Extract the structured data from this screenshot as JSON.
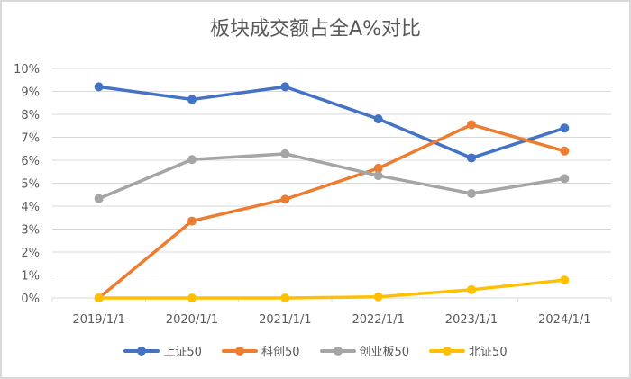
{
  "chart_data": {
    "type": "line",
    "title": "板块成交额占全A%对比",
    "xlabel": "",
    "ylabel": "",
    "categories": [
      "2019/1/1",
      "2020/1/1",
      "2021/1/1",
      "2022/1/1",
      "2023/1/1",
      "2024/1/1"
    ],
    "y_ticks": [
      "0%",
      "1%",
      "2%",
      "3%",
      "4%",
      "5%",
      "6%",
      "7%",
      "8%",
      "9%",
      "10%"
    ],
    "ylim": [
      0,
      10
    ],
    "grid": true,
    "legend_position": "bottom",
    "series": [
      {
        "name": "上证50",
        "color": "#4472c4",
        "values": [
          9.2,
          8.65,
          9.2,
          7.8,
          6.1,
          7.4
        ]
      },
      {
        "name": "科创50",
        "color": "#ed7d31",
        "values": [
          0.0,
          3.35,
          4.3,
          5.65,
          7.55,
          6.4
        ]
      },
      {
        "name": "创业板50",
        "color": "#a5a5a5",
        "values": [
          4.33,
          6.03,
          6.28,
          5.33,
          4.55,
          5.2
        ]
      },
      {
        "name": "北证50",
        "color": "#ffc000",
        "values": [
          0.0,
          0.0,
          0.0,
          0.05,
          0.36,
          0.78
        ]
      }
    ]
  }
}
